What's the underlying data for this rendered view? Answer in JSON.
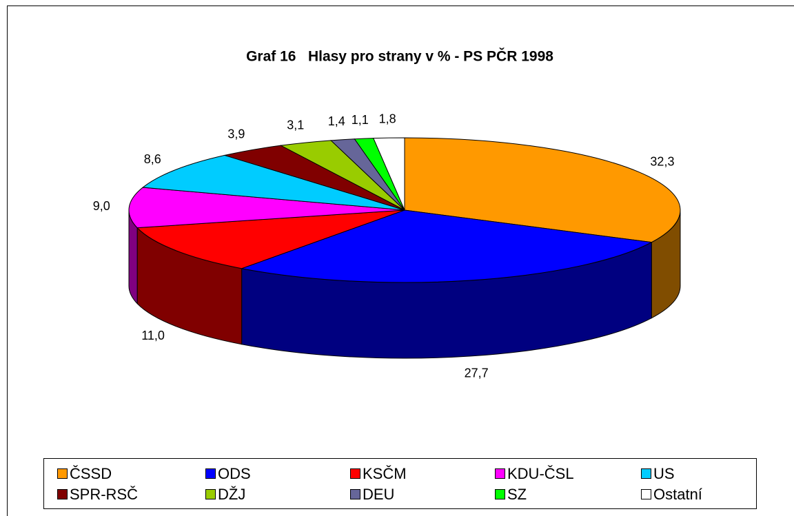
{
  "chart_data": {
    "type": "pie3d",
    "title": "Graf 16   Hlasy pro strany v % - PS PČR 1998",
    "categories": [
      "ČSSD",
      "ODS",
      "KSČM",
      "KDU-ČSL",
      "US",
      "SPR-RSČ",
      "DŽJ",
      "DEU",
      "SZ",
      "Ostatní"
    ],
    "values": [
      32.3,
      27.7,
      11.0,
      9.0,
      8.6,
      3.9,
      3.1,
      1.4,
      1.1,
      1.8
    ],
    "value_labels": [
      "32,3",
      "27,7",
      "11,0",
      "9,0",
      "8,6",
      "3,9",
      "3,1",
      "1,4",
      "1,1",
      "1,8"
    ],
    "colors": [
      "#ff9900",
      "#0000ff",
      "#ff0000",
      "#ff00ff",
      "#00ccff",
      "#800000",
      "#99cc00",
      "#666699",
      "#00ff00",
      "#ffffff"
    ],
    "legend": "bottom"
  }
}
